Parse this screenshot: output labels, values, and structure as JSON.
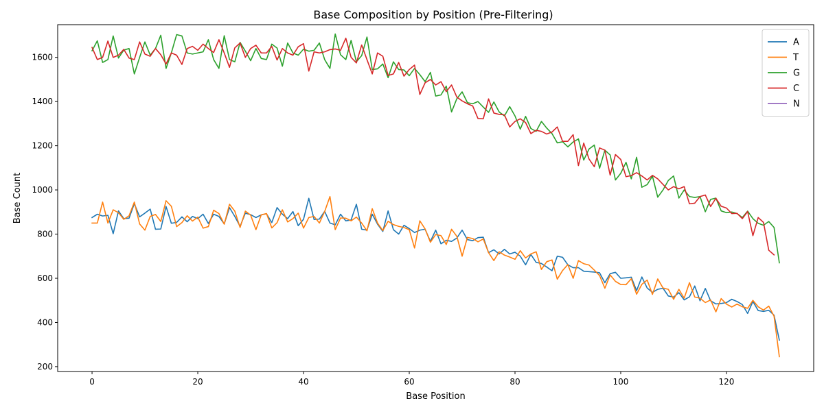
{
  "chart_data": {
    "type": "line",
    "title": "Base Composition by Position (Pre-Filtering)",
    "xlabel": "Base Position",
    "ylabel": "Base Count",
    "xlim": [
      -6.5,
      136.5
    ],
    "ylim": [
      178,
      1748
    ],
    "xticks": [
      0,
      20,
      40,
      60,
      80,
      100,
      120
    ],
    "yticks": [
      200,
      400,
      600,
      800,
      1000,
      1200,
      1400,
      1600
    ],
    "grid": false,
    "legend_position": "top-right",
    "series": [
      {
        "name": "A",
        "color": "#1f77b4",
        "x_start": 0,
        "values": [
          875,
          890,
          882,
          885,
          802,
          905,
          870,
          872,
          938,
          878,
          895,
          913,
          822,
          823,
          925,
          849,
          853,
          878,
          856,
          880,
          870,
          890,
          848,
          890,
          880,
          846,
          920,
          880,
          835,
          895,
          888,
          875,
          887,
          892,
          852,
          920,
          890,
          870,
          902,
          838,
          867,
          962,
          866,
          868,
          903,
          850,
          842,
          890,
          860,
          864,
          935,
          822,
          818,
          890,
          845,
          812,
          905,
          820,
          800,
          840,
          825,
          807,
          818,
          822,
          767,
          818,
          756,
          772,
          767,
          782,
          818,
          775,
          770,
          784,
          786,
          716,
          729,
          710,
          731,
          710,
          718,
          700,
          661,
          708,
          672,
          667,
          651,
          634,
          700,
          695,
          661,
          648,
          648,
          632,
          630,
          628,
          625,
          580,
          621,
          627,
          600,
          602,
          605,
          544,
          606,
          556,
          536,
          550,
          555,
          520,
          515,
          535,
          502,
          516,
          565,
          498,
          554,
          498,
          484,
          486,
          490,
          505,
          495,
          481,
          441,
          495,
          454,
          450,
          455,
          433,
          320
        ]
      },
      {
        "name": "T",
        "color": "#ff7f0e",
        "x_start": 0,
        "values": [
          850,
          850,
          945,
          850,
          910,
          897,
          867,
          883,
          945,
          846,
          818,
          880,
          889,
          857,
          951,
          926,
          834,
          852,
          883,
          859,
          877,
          827,
          834,
          908,
          893,
          845,
          935,
          904,
          830,
          904,
          886,
          820,
          887,
          893,
          828,
          852,
          910,
          855,
          870,
          895,
          827,
          875,
          880,
          850,
          902,
          970,
          820,
          873,
          872,
          860,
          877,
          850,
          815,
          915,
          850,
          816,
          858,
          843,
          835,
          830,
          820,
          737,
          860,
          823,
          763,
          798,
          793,
          753,
          822,
          790,
          700,
          785,
          780,
          765,
          778,
          716,
          680,
          720,
          705,
          696,
          686,
          725,
          692,
          710,
          720,
          640,
          675,
          683,
          596,
          635,
          662,
          600,
          680,
          666,
          660,
          637,
          612,
          555,
          615,
          586,
          572,
          571,
          598,
          528,
          573,
          592,
          527,
          597,
          556,
          550,
          505,
          550,
          510,
          580,
          515,
          510,
          490,
          502,
          448,
          508,
          483,
          470,
          483,
          471,
          464,
          500,
          471,
          456,
          474,
          428,
          245
        ]
      },
      {
        "name": "G",
        "color": "#2ca02c",
        "x_start": 0,
        "values": [
          1630,
          1675,
          1577,
          1590,
          1697,
          1597,
          1633,
          1640,
          1525,
          1600,
          1670,
          1610,
          1640,
          1700,
          1550,
          1620,
          1703,
          1697,
          1620,
          1615,
          1620,
          1625,
          1680,
          1590,
          1550,
          1698,
          1590,
          1580,
          1668,
          1628,
          1585,
          1640,
          1595,
          1590,
          1660,
          1642,
          1560,
          1665,
          1620,
          1610,
          1637,
          1628,
          1632,
          1665,
          1590,
          1550,
          1706,
          1612,
          1590,
          1677,
          1580,
          1608,
          1692,
          1545,
          1548,
          1570,
          1508,
          1580,
          1545,
          1543,
          1517,
          1550,
          1522,
          1490,
          1532,
          1425,
          1430,
          1470,
          1353,
          1413,
          1444,
          1395,
          1390,
          1400,
          1375,
          1351,
          1398,
          1353,
          1335,
          1377,
          1335,
          1275,
          1333,
          1278,
          1265,
          1310,
          1280,
          1255,
          1213,
          1218,
          1195,
          1217,
          1231,
          1135,
          1185,
          1203,
          1098,
          1180,
          1158,
          1045,
          1075,
          1125,
          1050,
          1148,
          1012,
          1024,
          1062,
          967,
          1000,
          1043,
          1063,
          963,
          1000,
          970,
          966,
          970,
          901,
          957,
          963,
          905,
          897,
          900,
          893,
          875,
          904,
          870,
          849,
          840,
          857,
          830,
          670
        ]
      },
      {
        "name": "C",
        "color": "#d62728",
        "x_start": 0,
        "values": [
          1645,
          1590,
          1600,
          1674,
          1600,
          1610,
          1636,
          1597,
          1590,
          1670,
          1615,
          1605,
          1640,
          1612,
          1570,
          1620,
          1610,
          1568,
          1640,
          1650,
          1632,
          1660,
          1640,
          1622,
          1680,
          1620,
          1555,
          1643,
          1665,
          1600,
          1640,
          1655,
          1620,
          1620,
          1650,
          1588,
          1640,
          1620,
          1610,
          1648,
          1662,
          1538,
          1625,
          1620,
          1625,
          1635,
          1638,
          1632,
          1687,
          1600,
          1575,
          1656,
          1590,
          1525,
          1620,
          1605,
          1518,
          1525,
          1577,
          1515,
          1545,
          1565,
          1432,
          1485,
          1500,
          1475,
          1490,
          1445,
          1475,
          1420,
          1403,
          1390,
          1380,
          1323,
          1322,
          1412,
          1348,
          1342,
          1340,
          1285,
          1310,
          1322,
          1305,
          1255,
          1270,
          1265,
          1253,
          1262,
          1285,
          1220,
          1220,
          1250,
          1110,
          1212,
          1140,
          1105,
          1190,
          1180,
          1067,
          1160,
          1138,
          1060,
          1065,
          1078,
          1063,
          1045,
          1066,
          1050,
          1025,
          1000,
          1015,
          1005,
          1015,
          937,
          940,
          970,
          977,
          925,
          962,
          926,
          918,
          893,
          894,
          870,
          902,
          793,
          875,
          853,
          727,
          706
        ]
      },
      {
        "name": "N",
        "color": "#9467bd",
        "x_start": 0,
        "values": []
      }
    ]
  }
}
